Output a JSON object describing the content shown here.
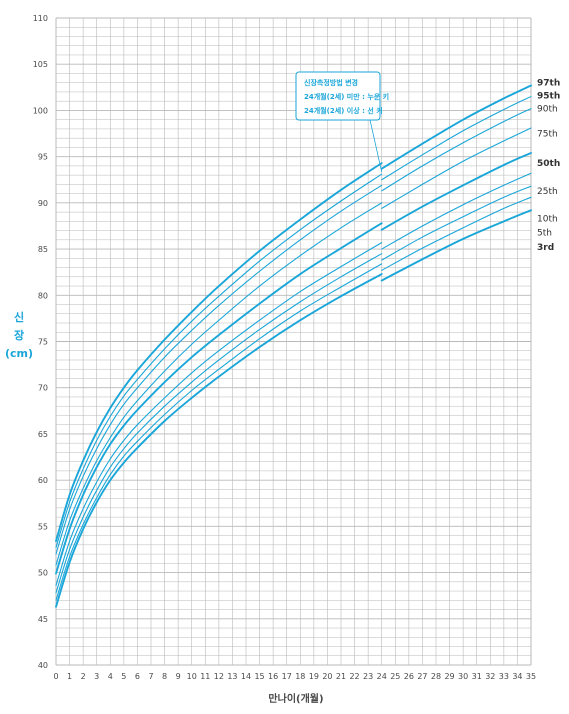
{
  "chart_data": {
    "type": "line",
    "xlabel": "만나이(개월)",
    "ylabel_lines": [
      "신",
      "장",
      "(cm)"
    ],
    "xlim": [
      0,
      35
    ],
    "ylim": [
      40,
      110
    ],
    "x_ticks": [
      0,
      1,
      2,
      3,
      4,
      5,
      6,
      7,
      8,
      9,
      10,
      11,
      12,
      13,
      14,
      15,
      16,
      17,
      18,
      19,
      20,
      21,
      22,
      23,
      24,
      25,
      26,
      27,
      28,
      29,
      30,
      31,
      32,
      33,
      34,
      35
    ],
    "y_ticks": [
      40,
      45,
      50,
      55,
      60,
      65,
      70,
      75,
      80,
      85,
      90,
      95,
      100,
      105,
      110
    ],
    "grid": true,
    "series_color": "#1aa6d9",
    "grid_color": "#b9b9b9",
    "break_at_x": 24,
    "annotation": {
      "lines": [
        "신장측정방법 변경",
        "24개월(2세) 미만 : 누운 키",
        "24개월(2세) 이상 : 선 키"
      ],
      "points_to_x": 24
    },
    "series": [
      {
        "name": "97th",
        "bold": true,
        "x": [
          0,
          1,
          2,
          3,
          4,
          5,
          6,
          8,
          10,
          12,
          15,
          18,
          21,
          24,
          24,
          27,
          30,
          33,
          35
        ],
        "values": [
          53.4,
          58.4,
          62.1,
          65.2,
          67.8,
          70.0,
          71.9,
          75.2,
          78.2,
          81.0,
          84.8,
          88.2,
          91.4,
          94.3,
          93.7,
          96.4,
          99.0,
          101.3,
          102.7
        ]
      },
      {
        "name": "95th",
        "bold": false,
        "x": [
          0,
          1,
          2,
          3,
          4,
          5,
          6,
          8,
          10,
          12,
          15,
          18,
          21,
          24,
          24,
          27,
          30,
          33,
          35
        ],
        "values": [
          52.7,
          57.6,
          61.2,
          64.3,
          66.9,
          69.1,
          70.9,
          74.2,
          77.2,
          79.9,
          83.7,
          87.1,
          90.2,
          93.1,
          92.5,
          95.2,
          97.8,
          100.1,
          101.5
        ]
      },
      {
        "name": "90th",
        "bold": false,
        "x": [
          0,
          1,
          2,
          3,
          4,
          5,
          6,
          8,
          10,
          12,
          15,
          18,
          21,
          24,
          24,
          27,
          30,
          33,
          35
        ],
        "values": [
          52.0,
          56.8,
          60.4,
          63.4,
          66.0,
          68.2,
          70.0,
          73.3,
          76.2,
          78.9,
          82.6,
          86.0,
          89.1,
          91.9,
          91.3,
          94.0,
          96.5,
          98.8,
          100.2
        ]
      },
      {
        "name": "75th",
        "bold": false,
        "x": [
          0,
          1,
          2,
          3,
          4,
          5,
          6,
          8,
          10,
          12,
          15,
          18,
          21,
          24,
          24,
          27,
          30,
          33,
          35
        ],
        "values": [
          50.8,
          55.6,
          59.1,
          62.1,
          64.6,
          66.8,
          68.6,
          71.8,
          74.7,
          77.3,
          81.0,
          84.3,
          87.3,
          90.0,
          89.4,
          92.0,
          94.5,
          96.7,
          98.1
        ]
      },
      {
        "name": "50th",
        "bold": true,
        "x": [
          0,
          1,
          2,
          3,
          4,
          5,
          6,
          8,
          10,
          12,
          15,
          18,
          21,
          24,
          24,
          27,
          30,
          33,
          35
        ],
        "values": [
          49.9,
          54.7,
          58.4,
          61.4,
          63.9,
          65.9,
          67.6,
          70.6,
          73.3,
          75.7,
          79.1,
          82.3,
          85.1,
          87.8,
          87.1,
          89.6,
          91.9,
          94.1,
          95.4
        ]
      },
      {
        "name": "25th",
        "bold": false,
        "x": [
          0,
          1,
          2,
          3,
          4,
          5,
          6,
          8,
          10,
          12,
          15,
          18,
          21,
          24,
          24,
          27,
          30,
          33,
          35
        ],
        "values": [
          48.6,
          53.4,
          56.9,
          59.8,
          62.3,
          64.3,
          66.0,
          68.9,
          71.6,
          74.0,
          77.3,
          80.4,
          83.1,
          85.7,
          85.0,
          87.5,
          89.8,
          91.9,
          93.2
        ]
      },
      {
        "name": "10th",
        "bold": false,
        "x": [
          0,
          1,
          2,
          3,
          4,
          5,
          6,
          8,
          10,
          12,
          15,
          18,
          21,
          24,
          24,
          27,
          30,
          33,
          35
        ],
        "values": [
          47.8,
          52.5,
          56.0,
          58.9,
          61.4,
          63.4,
          65.1,
          68.0,
          70.6,
          73.0,
          76.3,
          79.3,
          82.0,
          84.5,
          83.8,
          86.3,
          88.5,
          90.6,
          91.8
        ]
      },
      {
        "name": "5th",
        "bold": false,
        "x": [
          0,
          1,
          2,
          3,
          4,
          5,
          6,
          8,
          10,
          12,
          15,
          18,
          21,
          24,
          24,
          27,
          30,
          33,
          35
        ],
        "values": [
          47.0,
          51.7,
          55.2,
          58.1,
          60.6,
          62.6,
          64.2,
          67.1,
          69.7,
          72.0,
          75.3,
          78.3,
          80.9,
          83.4,
          82.7,
          85.1,
          87.3,
          89.4,
          90.6
        ]
      },
      {
        "name": "3rd",
        "bold": true,
        "x": [
          0,
          1,
          2,
          3,
          4,
          5,
          6,
          8,
          10,
          12,
          15,
          18,
          21,
          24,
          24,
          27,
          30,
          33,
          35
        ],
        "values": [
          46.3,
          51.1,
          54.7,
          57.6,
          60.0,
          61.9,
          63.5,
          66.4,
          68.9,
          71.2,
          74.4,
          77.3,
          79.9,
          82.3,
          81.6,
          83.9,
          86.1,
          88.0,
          89.2
        ]
      }
    ],
    "legend_labels": [
      {
        "text": "97th",
        "y": 103.0,
        "bold": true
      },
      {
        "text": "95th",
        "y": 101.6,
        "bold": true
      },
      {
        "text": "90th",
        "y": 100.2,
        "bold": false
      },
      {
        "text": "75th",
        "y": 97.5,
        "bold": false
      },
      {
        "text": "50th",
        "y": 94.3,
        "bold": true
      },
      {
        "text": "25th",
        "y": 91.3,
        "bold": false
      },
      {
        "text": "10th",
        "y": 88.3,
        "bold": false
      },
      {
        "text": "5th",
        "y": 86.8,
        "bold": false
      },
      {
        "text": "3rd",
        "y": 85.2,
        "bold": true
      }
    ]
  }
}
